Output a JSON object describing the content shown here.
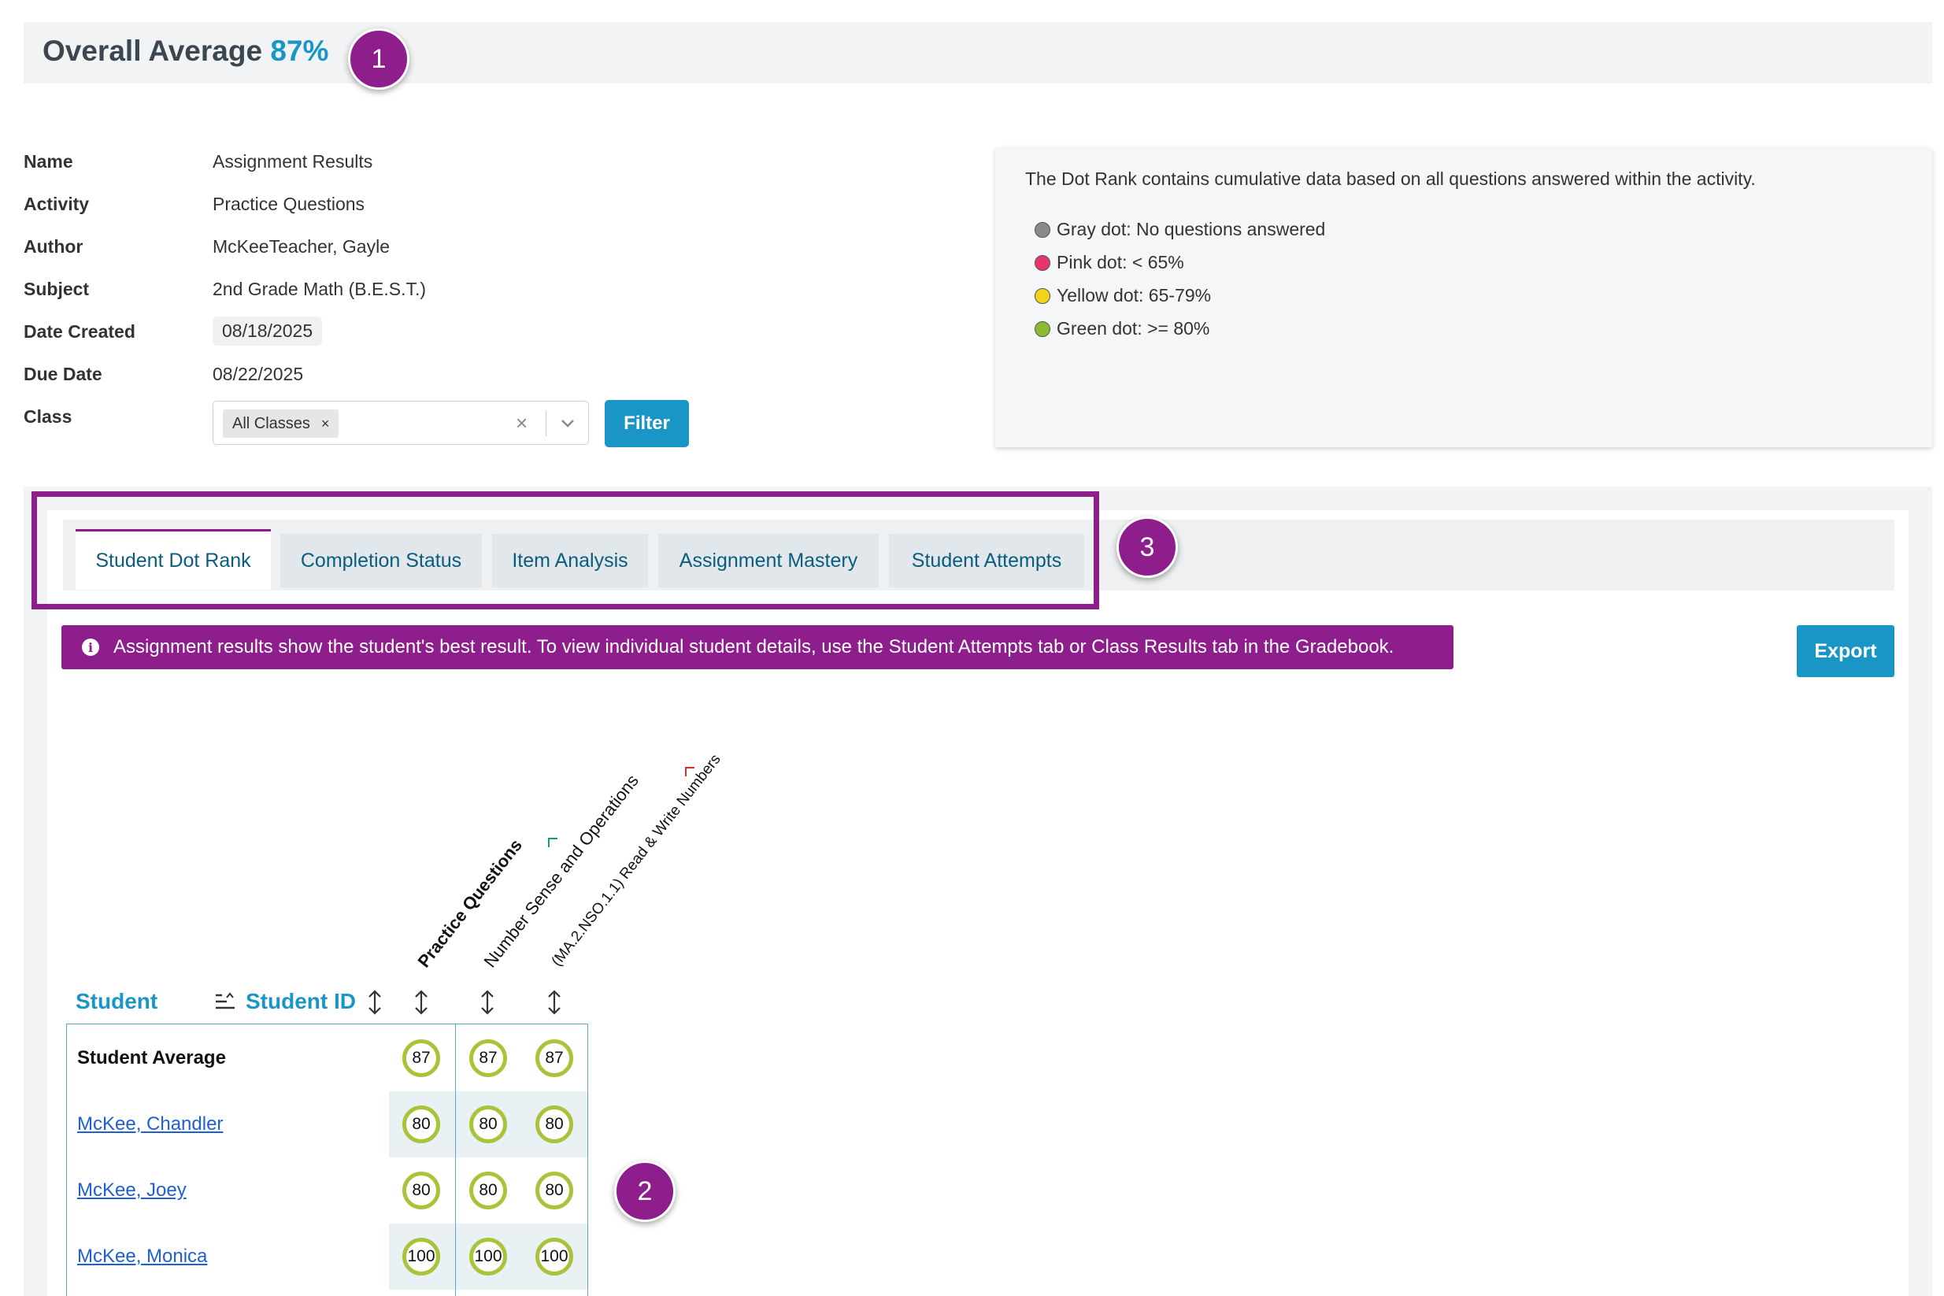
{
  "header": {
    "overall_label": "Overall Average",
    "overall_value": "87%"
  },
  "callouts": [
    "1",
    "2",
    "3"
  ],
  "details": {
    "name_label": "Name",
    "name_value": "Assignment Results",
    "activity_label": "Activity",
    "activity_value": "Practice Questions",
    "author_label": "Author",
    "author_value": "McKeeTeacher, Gayle",
    "subject_label": "Subject",
    "subject_value": "2nd Grade Math (B.E.S.T.)",
    "date_created_label": "Date Created",
    "date_created_value": "08/18/2025",
    "due_date_label": "Due Date",
    "due_date_value": "08/22/2025",
    "class_label": "Class",
    "class_chip": "All Classes",
    "class_chip_remove": "×",
    "clear_symbol": "×",
    "filter_label": "Filter"
  },
  "legend": {
    "intro": "The Dot Rank contains cumulative data based on all questions answered within the activity.",
    "items": [
      {
        "label": "Gray dot: No questions answered",
        "color": "#8a8a8a"
      },
      {
        "label": "Pink dot: < 65%",
        "color": "#e8336b"
      },
      {
        "label": "Yellow dot: 65-79%",
        "color": "#f2d21b"
      },
      {
        "label": "Green dot: >= 80%",
        "color": "#8dbb2f"
      }
    ]
  },
  "tabs": [
    {
      "label": "Student Dot Rank",
      "active": true
    },
    {
      "label": "Completion Status",
      "active": false
    },
    {
      "label": "Item Analysis",
      "active": false
    },
    {
      "label": "Assignment Mastery",
      "active": false
    },
    {
      "label": "Student Attempts",
      "active": false
    }
  ],
  "info_banner": {
    "icon": "i",
    "text": "Assignment results show the student's best result. To view individual student details, use the Student Attempts tab or Class Results tab in the Gradebook."
  },
  "export_label": "Export",
  "table": {
    "student_header": "Student",
    "student_id_header": "Student ID",
    "columns": [
      {
        "label": "Practice Questions",
        "bold": true
      },
      {
        "label": "Number Sense and Operations",
        "bold": false
      },
      {
        "label": "(MA.2.NSO.1.1) Read & Write Numbers",
        "bold": false
      }
    ],
    "rows": [
      {
        "name": "Student Average",
        "scores": [
          "87",
          "87",
          "87"
        ]
      },
      {
        "name": "McKee, Chandler",
        "scores": [
          "80",
          "80",
          "80"
        ]
      },
      {
        "name": "McKee, Joey",
        "scores": [
          "80",
          "80",
          "80"
        ]
      },
      {
        "name": "McKee, Monica",
        "scores": [
          "100",
          "100",
          "100"
        ]
      }
    ]
  }
}
